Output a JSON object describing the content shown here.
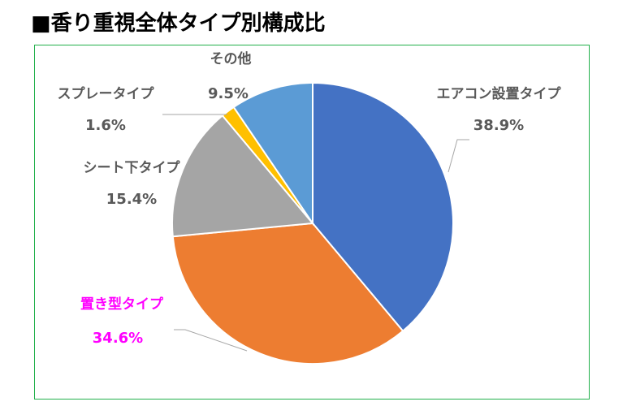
{
  "title": "■香り重視全体タイプ別構成比",
  "colors": {
    "frame": "#22b04b",
    "leader": "#a6a6a6",
    "label": "#595959",
    "highlight_label": "#ff00ff"
  },
  "chart_data": {
    "type": "pie",
    "title": "",
    "slices": [
      {
        "label": "エアコン設置タイプ",
        "value": 38.9,
        "value_label": "38.9%",
        "color": "#4472c4"
      },
      {
        "label": "置き型タイプ",
        "value": 34.6,
        "value_label": "34.6%",
        "color": "#ed7d31",
        "highlight": true
      },
      {
        "label": "シート下タイプ",
        "value": 15.4,
        "value_label": "15.4%",
        "color": "#a5a5a5"
      },
      {
        "label": "スプレータイプ",
        "value": 1.6,
        "value_label": "1.6%",
        "color": "#ffc000"
      },
      {
        "label": "その他",
        "value": 9.5,
        "value_label": "9.5%",
        "color": "#5b9bd5"
      }
    ],
    "start_angle": "12 o'clock",
    "direction": "clockwise",
    "legend": "none",
    "data_labels": "outside with leader lines"
  }
}
